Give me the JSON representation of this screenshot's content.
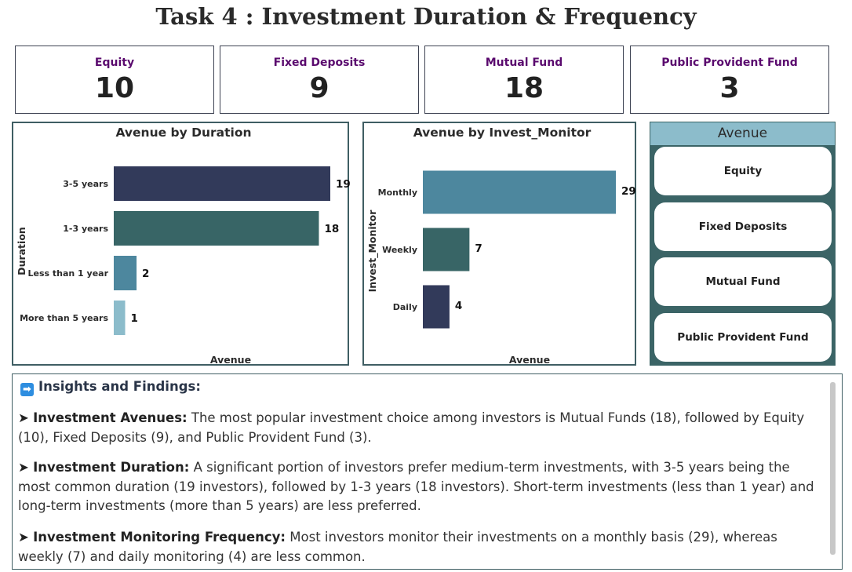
{
  "title": "Task 4 : Investment Duration & Frequency",
  "cards": [
    {
      "label": "Equity",
      "value": "10"
    },
    {
      "label": "Fixed Deposits",
      "value": "9"
    },
    {
      "label": "Mutual Fund",
      "value": "18"
    },
    {
      "label": "Public Provident Fund",
      "value": "3"
    }
  ],
  "colors": {
    "card_label": "#5a0a6e",
    "navy": "#323a5a",
    "teal_dark": "#386566",
    "teal_mid": "#4d879e",
    "teal_light": "#8cbccb",
    "slicer_bg": "#3b6466"
  },
  "chart_data": [
    {
      "type": "bar",
      "orientation": "horizontal",
      "title": "Avenue by Duration",
      "xlabel": "Avenue",
      "ylabel": "Duration",
      "categories": [
        "3-5 years",
        "1-3 years",
        "Less than 1 year",
        "More than 5 years"
      ],
      "values": [
        19,
        18,
        2,
        1
      ],
      "colors": [
        "#323a5a",
        "#386566",
        "#4d879e",
        "#8cbccb"
      ],
      "xlim": [
        0,
        19
      ]
    },
    {
      "type": "bar",
      "orientation": "horizontal",
      "title": "Avenue by Invest_Monitor",
      "xlabel": "Avenue",
      "ylabel": "Invest_Monitor",
      "categories": [
        "Monthly",
        "Weekly",
        "Daily"
      ],
      "values": [
        29,
        7,
        4
      ],
      "colors": [
        "#4d879e",
        "#386566",
        "#323a5a"
      ],
      "xlim": [
        0,
        29
      ]
    }
  ],
  "slicer": {
    "title": "Avenue",
    "items": [
      "Equity",
      "Fixed Deposits",
      "Mutual Fund",
      "Public Provident Fund"
    ]
  },
  "insights": {
    "icon": "right-arrow-icon",
    "heading": "Insights and Findings:",
    "bullet": "➤",
    "items": [
      {
        "label": "Investment Avenues:",
        "text": " The most popular investment choice among investors is Mutual Funds (18), followed by Equity (10), Fixed Deposits (9), and Public Provident Fund (3)."
      },
      {
        "label": "Investment Duration:",
        "text": " A significant portion of investors prefer medium-term investments, with 3-5 years being the most common duration (19 investors), followed by 1-3 years (18 investors). Short-term investments (less than 1 year) and long-term investments (more than 5 years) are less preferred."
      },
      {
        "label": "Investment Monitoring Frequency:",
        "text": " Most investors monitor their investments on a monthly basis (29), whereas weekly (7) and daily monitoring (4) are less common."
      }
    ]
  }
}
